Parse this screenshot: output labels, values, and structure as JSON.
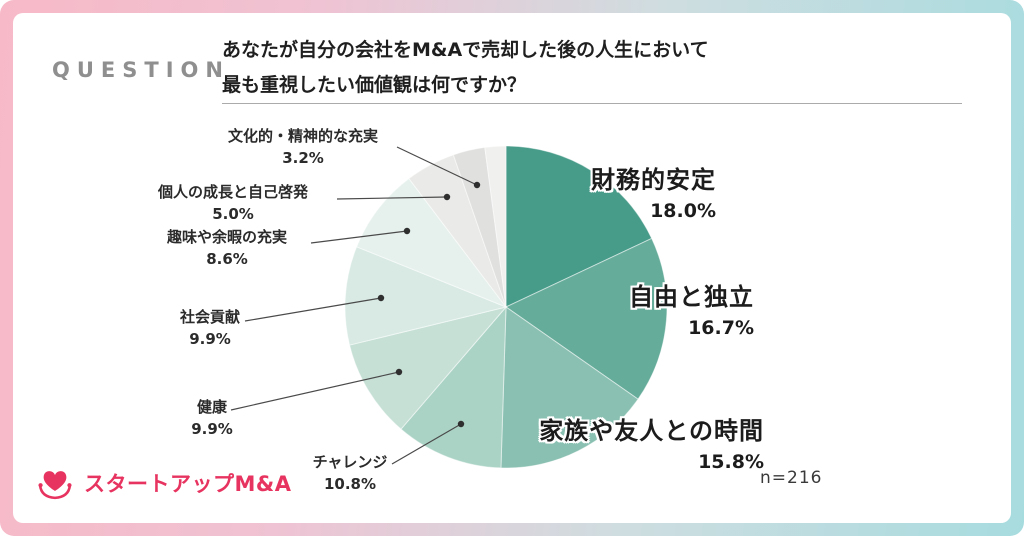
{
  "header": {
    "question_label": "QUESTION",
    "question_line1": "あなたが自分の会社をM&Aで売却した後の人生において",
    "question_line2": "最も重視したい価値観は何ですか？"
  },
  "chart_data": {
    "type": "pie",
    "title": "あなたが自分の会社をM&Aで売却した後の人生において最も重視したい価値観は何ですか？",
    "start_angle_deg": 0,
    "direction": "clockwise",
    "sample_label": "n=216",
    "slices": [
      {
        "label": "財務的安定",
        "value": 18.0,
        "pct": "18.0%",
        "color": "#479b89"
      },
      {
        "label": "自由と独立",
        "value": 16.7,
        "pct": "16.7%",
        "color": "#66ac9a"
      },
      {
        "label": "家族や友人との時間",
        "value": 15.8,
        "pct": "15.8%",
        "color": "#8ac0b1"
      },
      {
        "label": "チャレンジ",
        "value": 10.8,
        "pct": "10.8%",
        "color": "#abd3c5"
      },
      {
        "label": "健康",
        "value": 9.9,
        "pct": "9.9%",
        "color": "#c6e0d6"
      },
      {
        "label": "社会貢献",
        "value": 9.9,
        "pct": "9.9%",
        "color": "#d8eae3"
      },
      {
        "label": "趣味や余暇の充実",
        "value": 8.6,
        "pct": "8.6%",
        "color": "#e6f1ed"
      },
      {
        "label": "個人の成長と自己啓発",
        "value": 5.0,
        "pct": "5.0%",
        "color": "#eaebe8"
      },
      {
        "label": "文化的・精神的な充実",
        "value": 3.2,
        "pct": "3.2%",
        "color": "#e0e0df"
      },
      {
        "label": "",
        "value": 2.1,
        "pct": "",
        "color": "#f0f0ef"
      }
    ]
  },
  "footer": {
    "brand": "スタートアップM&A"
  }
}
